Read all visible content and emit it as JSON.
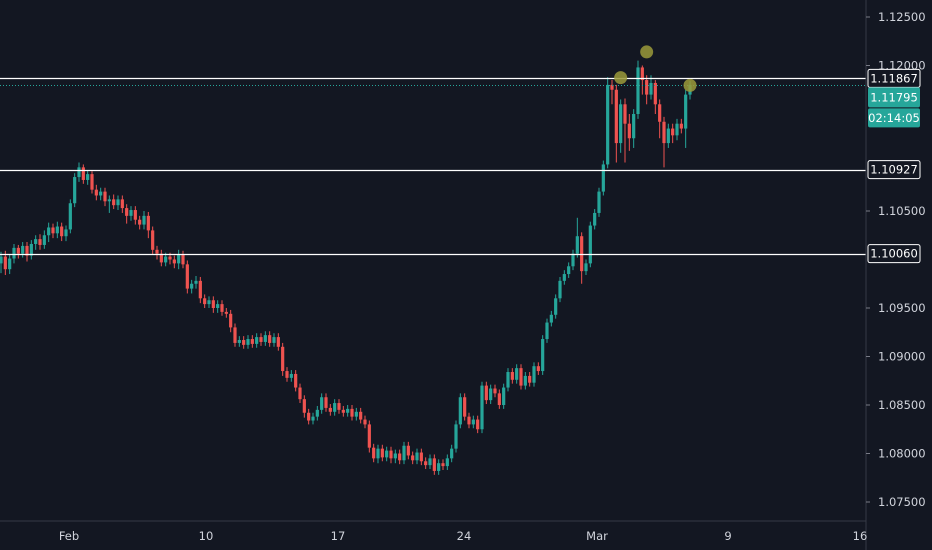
{
  "chart_data": {
    "type": "candlestick",
    "x_axis": {
      "tick_labels": [
        "Feb",
        "10",
        "17",
        "24",
        "Mar",
        "9",
        "16"
      ]
    },
    "y_axis": {
      "tick_labels": [
        "1.12500",
        "1.12000",
        "1.10500",
        "1.09500",
        "1.09000",
        "1.08500",
        "1.08000",
        "1.07500"
      ],
      "range": [
        1.0725,
        1.129
      ]
    },
    "horizontal_levels": [
      {
        "label": "1.11867",
        "value": 1.11867
      },
      {
        "label": "1.10927",
        "value": 1.10927
      },
      {
        "label": "1.10060",
        "value": 1.1006
      }
    ],
    "last_price": {
      "label": "1.11795",
      "value": 1.11795
    },
    "countdown": "02:14:05",
    "grid": false,
    "colors": {
      "background": "#131722",
      "up": "#26a69a",
      "down": "#ef5350",
      "level_line": "#ffffff",
      "price_line": "#26a69a",
      "marker": "#9b9a3a",
      "axis_border": "#363a45",
      "text": "#d1d4dc"
    },
    "markers": [
      {
        "label": "",
        "value": 1.11875
      },
      {
        "label": "",
        "value": 1.1214
      },
      {
        "label": "",
        "value": 1.11795
      }
    ],
    "candles": [
      [
        1.0996,
        1.1003,
        1.0986,
        1.1008
      ],
      [
        1.1003,
        1.099,
        1.0984,
        1.1009
      ],
      [
        1.099,
        1.1001,
        1.0985,
        1.1005
      ],
      [
        1.1001,
        1.1012,
        1.0996,
        1.1016
      ],
      [
        1.1012,
        1.1006,
        1.1001,
        1.1015
      ],
      [
        1.1006,
        1.1014,
        1.1002,
        1.1018
      ],
      [
        1.1014,
        1.1004,
        1.0998,
        1.1018
      ],
      [
        1.1004,
        1.1016,
        1.1,
        1.102
      ],
      [
        1.1016,
        1.1021,
        1.101,
        1.1025
      ],
      [
        1.1021,
        1.1015,
        1.101,
        1.1026
      ],
      [
        1.1015,
        1.1025,
        1.1011,
        1.103
      ],
      [
        1.1025,
        1.1033,
        1.1018,
        1.1038
      ],
      [
        1.1033,
        1.1027,
        1.1022,
        1.1037
      ],
      [
        1.1027,
        1.1034,
        1.1022,
        1.1039
      ],
      [
        1.1034,
        1.1024,
        1.1019,
        1.1038
      ],
      [
        1.1024,
        1.1031,
        1.1019,
        1.1035
      ],
      [
        1.1031,
        1.1058,
        1.1027,
        1.1062
      ],
      [
        1.1058,
        1.1085,
        1.1054,
        1.1089
      ],
      [
        1.1085,
        1.1095,
        1.108,
        1.11
      ],
      [
        1.1095,
        1.1082,
        1.1078,
        1.1098
      ],
      [
        1.1082,
        1.1088,
        1.1077,
        1.1092
      ],
      [
        1.1088,
        1.1072,
        1.1068,
        1.1091
      ],
      [
        1.1072,
        1.1066,
        1.1061,
        1.1077
      ],
      [
        1.1066,
        1.107,
        1.1061,
        1.1074
      ],
      [
        1.107,
        1.106,
        1.1055,
        1.1074
      ],
      [
        1.106,
        1.1062,
        1.1048,
        1.1066
      ],
      [
        1.1062,
        1.1056,
        1.1052,
        1.1067
      ],
      [
        1.1056,
        1.1062,
        1.1051,
        1.1066
      ],
      [
        1.1062,
        1.1053,
        1.1048,
        1.1066
      ],
      [
        1.1053,
        1.1045,
        1.1037,
        1.1057
      ],
      [
        1.1045,
        1.1051,
        1.104,
        1.1055
      ],
      [
        1.1051,
        1.1041,
        1.1036,
        1.1055
      ],
      [
        1.1041,
        1.1036,
        1.1031,
        1.1045
      ],
      [
        1.1036,
        1.1045,
        1.1031,
        1.105
      ],
      [
        1.1045,
        1.103,
        1.1022,
        1.1049
      ],
      [
        1.103,
        1.101,
        1.1005,
        1.1034
      ],
      [
        1.101,
        1.1006,
        1.1,
        1.1014
      ],
      [
        1.1006,
        1.0997,
        1.0993,
        1.101
      ],
      [
        1.0997,
        1.1003,
        1.0993,
        1.1007
      ],
      [
        1.1003,
        1.1,
        1.0995,
        1.1007
      ],
      [
        1.1,
        1.0996,
        1.0991,
        1.1004
      ],
      [
        1.0996,
        1.1005,
        1.099,
        1.101
      ],
      [
        1.1005,
        1.0995,
        1.0991,
        1.1009
      ],
      [
        1.0995,
        1.097,
        1.0965,
        1.0999
      ],
      [
        1.097,
        1.0975,
        1.0965,
        1.0979
      ],
      [
        1.0975,
        1.0978,
        1.097,
        1.0983
      ],
      [
        1.0978,
        1.096,
        1.0955,
        1.0982
      ],
      [
        1.096,
        1.0954,
        1.095,
        1.0964
      ],
      [
        1.0954,
        1.0958,
        1.095,
        1.0962
      ],
      [
        1.0958,
        1.095,
        1.0945,
        1.0962
      ],
      [
        1.095,
        1.0954,
        1.0945,
        1.0958
      ],
      [
        1.0954,
        1.0946,
        1.0942,
        1.0958
      ],
      [
        1.0946,
        1.0944,
        1.094,
        1.095
      ],
      [
        1.0944,
        1.093,
        1.0925,
        1.0948
      ],
      [
        1.093,
        1.0914,
        1.091,
        1.0934
      ],
      [
        1.0914,
        1.0917,
        1.091,
        1.0921
      ],
      [
        1.0917,
        1.0912,
        1.0908,
        1.0921
      ],
      [
        1.0912,
        1.0918,
        1.0908,
        1.0922
      ],
      [
        1.0918,
        1.0913,
        1.0909,
        1.0922
      ],
      [
        1.0913,
        1.092,
        1.0909,
        1.0924
      ],
      [
        1.092,
        1.0915,
        1.0911,
        1.0924
      ],
      [
        1.0915,
        1.0922,
        1.0911,
        1.0926
      ],
      [
        1.0922,
        1.0914,
        1.091,
        1.0926
      ],
      [
        1.0914,
        1.092,
        1.091,
        1.0924
      ],
      [
        1.092,
        1.091,
        1.0906,
        1.0924
      ],
      [
        1.091,
        1.0885,
        1.088,
        1.0914
      ],
      [
        1.0885,
        1.0878,
        1.0874,
        1.0889
      ],
      [
        1.0878,
        1.0882,
        1.0874,
        1.0886
      ],
      [
        1.0882,
        1.0868,
        1.0864,
        1.0886
      ],
      [
        1.0868,
        1.0856,
        1.0852,
        1.0872
      ],
      [
        1.0856,
        1.0842,
        1.0837,
        1.086
      ],
      [
        1.0842,
        1.0834,
        1.083,
        1.0846
      ],
      [
        1.0834,
        1.0838,
        1.083,
        1.0842
      ],
      [
        1.0838,
        1.0845,
        1.0834,
        1.0849
      ],
      [
        1.0845,
        1.0858,
        1.0841,
        1.0862
      ],
      [
        1.0858,
        1.0847,
        1.0843,
        1.0862
      ],
      [
        1.0847,
        1.0843,
        1.0839,
        1.0851
      ],
      [
        1.0843,
        1.0852,
        1.0839,
        1.0856
      ],
      [
        1.0852,
        1.0845,
        1.0841,
        1.0856
      ],
      [
        1.0845,
        1.0842,
        1.0838,
        1.0849
      ],
      [
        1.0842,
        1.0846,
        1.0838,
        1.085
      ],
      [
        1.0846,
        1.0838,
        1.0834,
        1.085
      ],
      [
        1.0838,
        1.0843,
        1.0834,
        1.0847
      ],
      [
        1.0843,
        1.0835,
        1.0831,
        1.0847
      ],
      [
        1.0835,
        1.083,
        1.0826,
        1.0839
      ],
      [
        1.083,
        1.0806,
        1.0801,
        1.0834
      ],
      [
        1.0806,
        1.0795,
        1.0791,
        1.081
      ],
      [
        1.0795,
        1.0805,
        1.079,
        1.0809
      ],
      [
        1.0805,
        1.0796,
        1.0792,
        1.0809
      ],
      [
        1.0796,
        1.0803,
        1.0792,
        1.0807
      ],
      [
        1.0803,
        1.0795,
        1.079,
        1.0807
      ],
      [
        1.0795,
        1.08,
        1.079,
        1.0804
      ],
      [
        1.08,
        1.0793,
        1.0789,
        1.0804
      ],
      [
        1.0793,
        1.0808,
        1.0789,
        1.0812
      ],
      [
        1.0808,
        1.0798,
        1.0794,
        1.0812
      ],
      [
        1.0798,
        1.0793,
        1.0789,
        1.0802
      ],
      [
        1.0793,
        1.0801,
        1.0789,
        1.0805
      ],
      [
        1.0801,
        1.0792,
        1.0788,
        1.0805
      ],
      [
        1.0792,
        1.0788,
        1.0784,
        1.0796
      ],
      [
        1.0788,
        1.0795,
        1.0784,
        1.0799
      ],
      [
        1.0795,
        1.0782,
        1.0778,
        1.0799
      ],
      [
        1.0782,
        1.079,
        1.0778,
        1.0794
      ],
      [
        1.079,
        1.0787,
        1.0783,
        1.0794
      ],
      [
        1.0787,
        1.0795,
        1.0783,
        1.0799
      ],
      [
        1.0795,
        1.0805,
        1.0791,
        1.0809
      ],
      [
        1.0805,
        1.083,
        1.0801,
        1.0834
      ],
      [
        1.083,
        1.0858,
        1.0826,
        1.0862
      ],
      [
        1.0858,
        1.0838,
        1.0834,
        1.0862
      ],
      [
        1.0838,
        1.083,
        1.0826,
        1.0842
      ],
      [
        1.083,
        1.0835,
        1.0826,
        1.0839
      ],
      [
        1.0835,
        1.0825,
        1.0821,
        1.0839
      ],
      [
        1.0825,
        1.087,
        1.0821,
        1.0874
      ],
      [
        1.087,
        1.0855,
        1.0851,
        1.0874
      ],
      [
        1.0855,
        1.0867,
        1.0851,
        1.0871
      ],
      [
        1.0867,
        1.0862,
        1.0858,
        1.0871
      ],
      [
        1.0862,
        1.085,
        1.0846,
        1.0866
      ],
      [
        1.085,
        1.0868,
        1.0846,
        1.0872
      ],
      [
        1.0868,
        1.0884,
        1.0864,
        1.0888
      ],
      [
        1.0884,
        1.0876,
        1.0872,
        1.0888
      ],
      [
        1.0876,
        1.0888,
        1.0872,
        1.0892
      ],
      [
        1.0888,
        1.087,
        1.0866,
        1.0892
      ],
      [
        1.087,
        1.088,
        1.0866,
        1.0884
      ],
      [
        1.088,
        1.0873,
        1.0869,
        1.0884
      ],
      [
        1.0873,
        1.089,
        1.0869,
        1.0894
      ],
      [
        1.089,
        1.0885,
        1.0881,
        1.0894
      ],
      [
        1.0885,
        1.0918,
        1.0881,
        1.0922
      ],
      [
        1.0918,
        1.0935,
        1.0914,
        1.0939
      ],
      [
        1.0935,
        1.0943,
        1.0931,
        1.0947
      ],
      [
        1.0943,
        1.096,
        1.0939,
        1.0964
      ],
      [
        1.096,
        1.0978,
        1.0956,
        1.0982
      ],
      [
        1.0978,
        1.0985,
        1.0974,
        1.0989
      ],
      [
        1.0985,
        1.0993,
        1.0981,
        1.0997
      ],
      [
        1.0993,
        1.1006,
        1.0989,
        1.101
      ],
      [
        1.1006,
        1.1024,
        1.1002,
        1.1043
      ],
      [
        1.1024,
        1.0988,
        1.0975,
        1.1028
      ],
      [
        1.0988,
        1.0996,
        1.0984,
        1.1
      ],
      [
        1.0996,
        1.1035,
        1.0992,
        1.1039
      ],
      [
        1.1035,
        1.1048,
        1.1031,
        1.1052
      ],
      [
        1.1048,
        1.107,
        1.1044,
        1.1074
      ],
      [
        1.107,
        1.1098,
        1.1066,
        1.1102
      ],
      [
        1.1098,
        1.118,
        1.1094,
        1.1188
      ],
      [
        1.118,
        1.1175,
        1.116,
        1.1185
      ],
      [
        1.1175,
        1.112,
        1.11,
        1.118
      ],
      [
        1.112,
        1.116,
        1.111,
        1.1165
      ],
      [
        1.116,
        1.114,
        1.11,
        1.1166
      ],
      [
        1.114,
        1.1125,
        1.1112,
        1.115
      ],
      [
        1.1125,
        1.115,
        1.1115,
        1.1155
      ],
      [
        1.115,
        1.1198,
        1.1145,
        1.1205
      ],
      [
        1.1198,
        1.1185,
        1.117,
        1.12
      ],
      [
        1.1185,
        1.117,
        1.116,
        1.119
      ],
      [
        1.117,
        1.1182,
        1.1165,
        1.119
      ],
      [
        1.1182,
        1.116,
        1.115,
        1.1185
      ],
      [
        1.116,
        1.1142,
        1.1125,
        1.1165
      ],
      [
        1.1142,
        1.112,
        1.1095,
        1.1147
      ],
      [
        1.112,
        1.1135,
        1.1115,
        1.114
      ],
      [
        1.1135,
        1.1128,
        1.112,
        1.114
      ],
      [
        1.1128,
        1.114,
        1.1123,
        1.1145
      ],
      [
        1.114,
        1.1135,
        1.113,
        1.1145
      ],
      [
        1.1135,
        1.117,
        1.1115,
        1.1175
      ],
      [
        1.117,
        1.118,
        1.1165,
        1.1184
      ]
    ]
  }
}
